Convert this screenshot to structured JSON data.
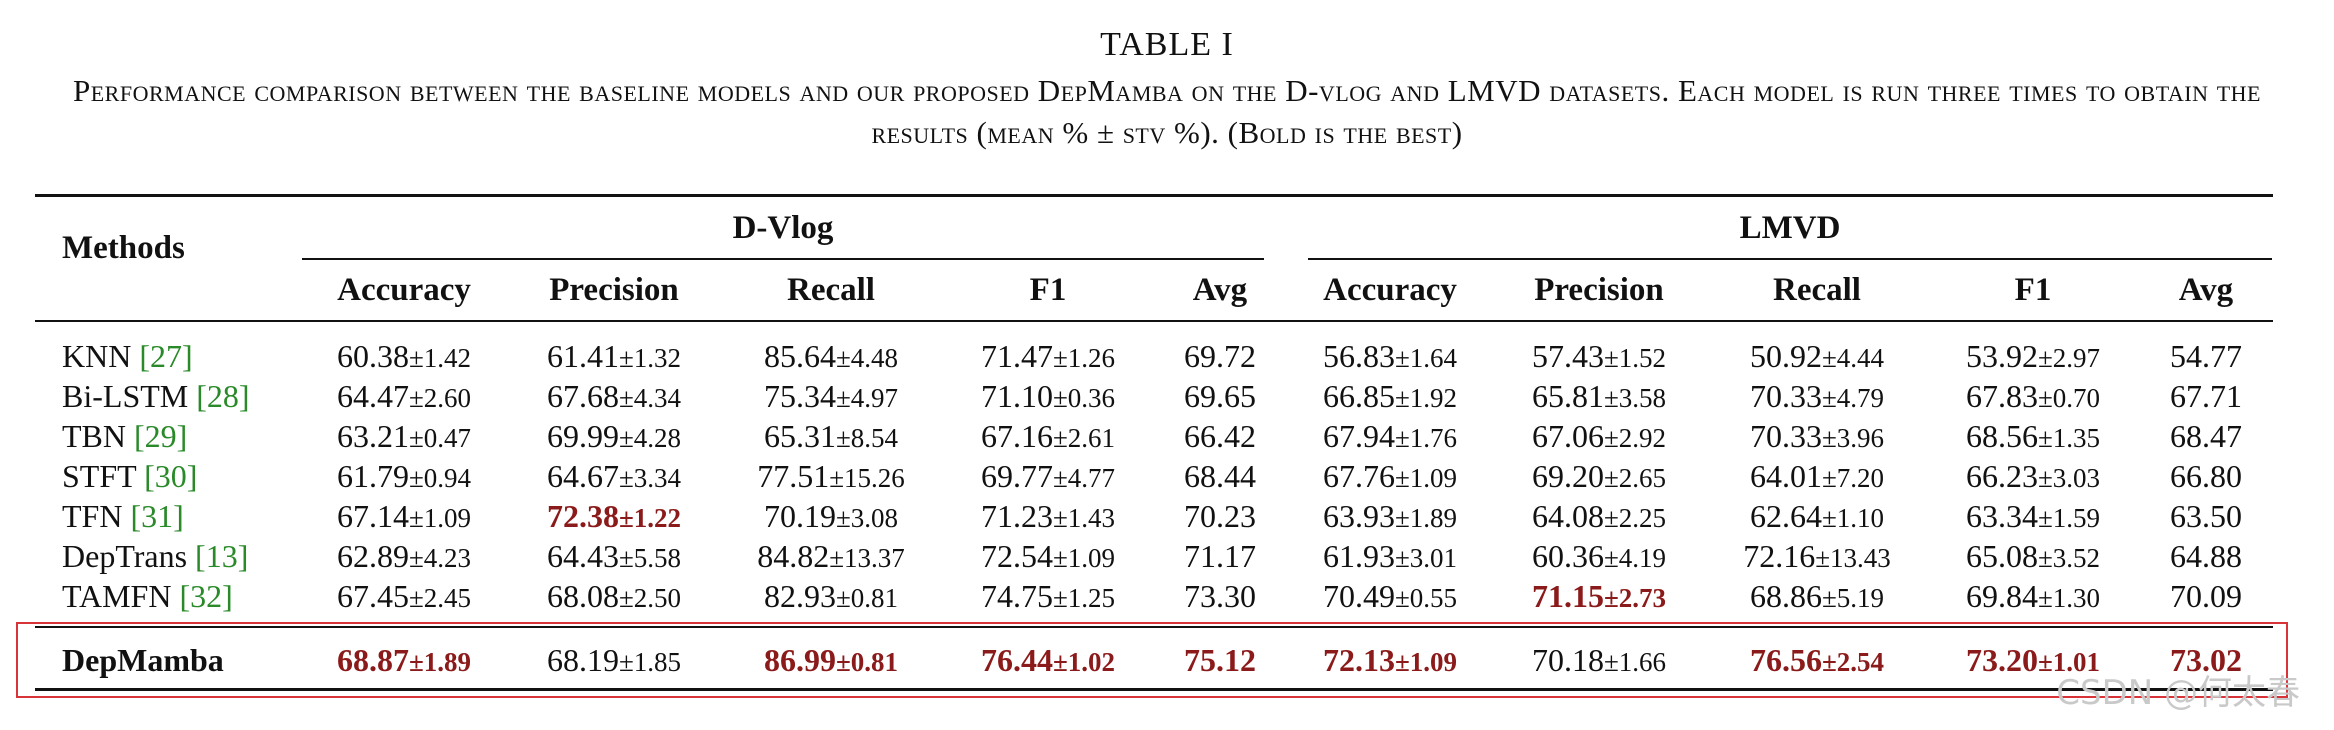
{
  "caption": {
    "title": "TABLE I",
    "body": "Performance comparison between the baseline models and our proposed DepMamba on the D-vlog and LMVD datasets. Each model is run three times to obtain the results (mean % ± stv %). (Bold is the best)"
  },
  "table": {
    "method_header": "Methods",
    "groups": [
      "D-Vlog",
      "LMVD"
    ],
    "metrics": [
      "Accuracy",
      "Precision",
      "Recall",
      "F1",
      "Avg",
      "Accuracy",
      "Precision",
      "Recall",
      "F1",
      "Avg"
    ],
    "rows": [
      {
        "name": "KNN",
        "ref": "[27]",
        "cells": [
          {
            "v": "60.38",
            "s": "±1.42"
          },
          {
            "v": "61.41",
            "s": "±1.32"
          },
          {
            "v": "85.64",
            "s": "±4.48"
          },
          {
            "v": "71.47",
            "s": "±1.26"
          },
          {
            "v": "69.72",
            "s": ""
          },
          {
            "v": "56.83",
            "s": "±1.64"
          },
          {
            "v": "57.43",
            "s": "±1.52"
          },
          {
            "v": "50.92",
            "s": "±4.44"
          },
          {
            "v": "53.92",
            "s": "±2.97"
          },
          {
            "v": "54.77",
            "s": ""
          }
        ]
      },
      {
        "name": "Bi-LSTM",
        "ref": "[28]",
        "cells": [
          {
            "v": "64.47",
            "s": "±2.60"
          },
          {
            "v": "67.68",
            "s": "±4.34"
          },
          {
            "v": "75.34",
            "s": "±4.97"
          },
          {
            "v": "71.10",
            "s": "±0.36"
          },
          {
            "v": "69.65",
            "s": ""
          },
          {
            "v": "66.85",
            "s": "±1.92"
          },
          {
            "v": "65.81",
            "s": "±3.58"
          },
          {
            "v": "70.33",
            "s": "±4.79"
          },
          {
            "v": "67.83",
            "s": "±0.70"
          },
          {
            "v": "67.71",
            "s": ""
          }
        ]
      },
      {
        "name": "TBN",
        "ref": "[29]",
        "cells": [
          {
            "v": "63.21",
            "s": "±0.47"
          },
          {
            "v": "69.99",
            "s": "±4.28"
          },
          {
            "v": "65.31",
            "s": "±8.54"
          },
          {
            "v": "67.16",
            "s": "±2.61"
          },
          {
            "v": "66.42",
            "s": ""
          },
          {
            "v": "67.94",
            "s": "±1.76"
          },
          {
            "v": "67.06",
            "s": "±2.92"
          },
          {
            "v": "70.33",
            "s": "±3.96"
          },
          {
            "v": "68.56",
            "s": "±1.35"
          },
          {
            "v": "68.47",
            "s": ""
          }
        ]
      },
      {
        "name": "STFT",
        "ref": "[30]",
        "cells": [
          {
            "v": "61.79",
            "s": "±0.94"
          },
          {
            "v": "64.67",
            "s": "±3.34"
          },
          {
            "v": "77.51",
            "s": "±15.26"
          },
          {
            "v": "69.77",
            "s": "±4.77"
          },
          {
            "v": "68.44",
            "s": ""
          },
          {
            "v": "67.76",
            "s": "±1.09"
          },
          {
            "v": "69.20",
            "s": "±2.65"
          },
          {
            "v": "64.01",
            "s": "±7.20"
          },
          {
            "v": "66.23",
            "s": "±3.03"
          },
          {
            "v": "66.80",
            "s": ""
          }
        ]
      },
      {
        "name": "TFN",
        "ref": "[31]",
        "cells": [
          {
            "v": "67.14",
            "s": "±1.09"
          },
          {
            "v": "72.38",
            "s": "±1.22",
            "best": true
          },
          {
            "v": "70.19",
            "s": "±3.08"
          },
          {
            "v": "71.23",
            "s": "±1.43"
          },
          {
            "v": "70.23",
            "s": ""
          },
          {
            "v": "63.93",
            "s": "±1.89"
          },
          {
            "v": "64.08",
            "s": "±2.25"
          },
          {
            "v": "62.64",
            "s": "±1.10"
          },
          {
            "v": "63.34",
            "s": "±1.59"
          },
          {
            "v": "63.50",
            "s": ""
          }
        ]
      },
      {
        "name": "DepTrans",
        "ref": "[13]",
        "cells": [
          {
            "v": "62.89",
            "s": "±4.23"
          },
          {
            "v": "64.43",
            "s": "±5.58"
          },
          {
            "v": "84.82",
            "s": "±13.37"
          },
          {
            "v": "72.54",
            "s": "±1.09"
          },
          {
            "v": "71.17",
            "s": ""
          },
          {
            "v": "61.93",
            "s": "±3.01"
          },
          {
            "v": "60.36",
            "s": "±4.19"
          },
          {
            "v": "72.16",
            "s": "±13.43"
          },
          {
            "v": "65.08",
            "s": "±3.52"
          },
          {
            "v": "64.88",
            "s": ""
          }
        ]
      },
      {
        "name": "TAMFN",
        "ref": "[32]",
        "cells": [
          {
            "v": "67.45",
            "s": "±2.45"
          },
          {
            "v": "68.08",
            "s": "±2.50"
          },
          {
            "v": "82.93",
            "s": "±0.81"
          },
          {
            "v": "74.75",
            "s": "±1.25"
          },
          {
            "v": "73.30",
            "s": ""
          },
          {
            "v": "70.49",
            "s": "±0.55"
          },
          {
            "v": "71.15",
            "s": "±2.73",
            "best": true
          },
          {
            "v": "68.86",
            "s": "±5.19"
          },
          {
            "v": "69.84",
            "s": "±1.30"
          },
          {
            "v": "70.09",
            "s": ""
          }
        ]
      }
    ],
    "proposed": {
      "name": "DepMamba",
      "cells": [
        {
          "v": "68.87",
          "s": "±1.89",
          "best": true
        },
        {
          "v": "68.19",
          "s": "±1.85"
        },
        {
          "v": "86.99",
          "s": "±0.81",
          "best": true
        },
        {
          "v": "76.44",
          "s": "±1.02",
          "best": true
        },
        {
          "v": "75.12",
          "s": "",
          "best": true
        },
        {
          "v": "72.13",
          "s": "±1.09",
          "best": true
        },
        {
          "v": "70.18",
          "s": "±1.66"
        },
        {
          "v": "76.56",
          "s": "±2.54",
          "best": true
        },
        {
          "v": "73.20",
          "s": "±1.01",
          "best": true
        },
        {
          "v": "73.02",
          "s": "",
          "best": true
        }
      ]
    }
  },
  "watermark": "CSDN @何太春",
  "colors": {
    "best": "#8b1a1a",
    "ref": "#2a8a2a",
    "highlight_box": "#d9333a"
  }
}
